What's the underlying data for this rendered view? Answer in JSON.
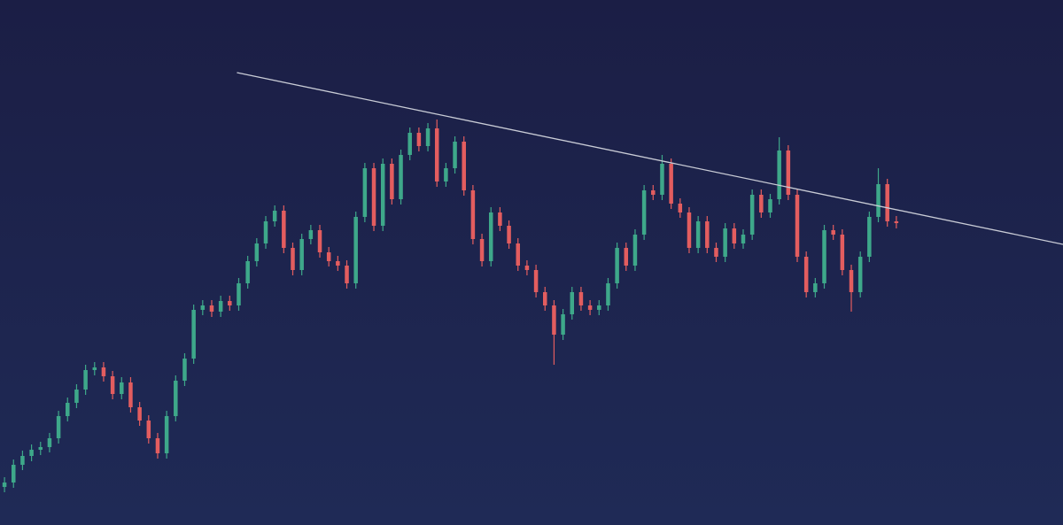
{
  "chart_data": {
    "type": "candlestick",
    "up_color": "#3ea88a",
    "down_color": "#e35d5f",
    "trendline_color": "#c9ccd6",
    "xlim": [
      -0.5,
      117.5
    ],
    "ylim": [
      0,
      593
    ],
    "open": [
      43,
      48,
      68,
      78,
      85,
      88,
      98,
      123,
      138,
      153,
      175,
      178,
      168,
      148,
      161,
      133,
      118,
      98,
      81,
      123,
      163,
      188,
      243,
      248,
      241,
      253,
      248,
      273,
      298,
      318,
      343,
      355,
      313,
      288,
      323,
      333,
      308,
      298,
      293,
      273,
      348,
      403,
      338,
      408,
      368,
      418,
      443,
      428,
      448,
      388,
      403,
      433,
      378,
      323,
      298,
      353,
      338,
      318,
      293,
      288,
      263,
      248,
      215,
      238,
      263,
      248,
      243,
      248,
      273,
      313,
      293,
      328,
      378,
      373,
      408,
      363,
      353,
      313,
      343,
      313,
      303,
      335,
      318,
      328,
      373,
      353,
      368,
      423,
      373,
      303,
      263,
      273,
      333,
      328,
      288,
      263,
      303,
      348,
      385,
      343
    ],
    "high": [
      54,
      74,
      84,
      91,
      94,
      104,
      129,
      144,
      159,
      181,
      184,
      184,
      174,
      167,
      167,
      139,
      124,
      104,
      129,
      169,
      194,
      249,
      254,
      254,
      259,
      259,
      279,
      304,
      324,
      349,
      361,
      361,
      319,
      329,
      339,
      339,
      314,
      304,
      299,
      354,
      409,
      409,
      414,
      414,
      424,
      449,
      449,
      454,
      458,
      409,
      439,
      439,
      384,
      329,
      359,
      359,
      344,
      324,
      299,
      294,
      269,
      254,
      244,
      269,
      269,
      254,
      254,
      279,
      319,
      319,
      334,
      384,
      384,
      418,
      414,
      369,
      359,
      349,
      349,
      319,
      341,
      341,
      334,
      379,
      379,
      374,
      438,
      429,
      379,
      309,
      279,
      339,
      339,
      334,
      294,
      309,
      354,
      403,
      391,
      349
    ],
    "low": [
      37,
      42,
      62,
      72,
      79,
      82,
      92,
      117,
      132,
      147,
      169,
      162,
      142,
      142,
      127,
      112,
      92,
      75,
      75,
      117,
      157,
      182,
      237,
      235,
      235,
      242,
      242,
      267,
      292,
      312,
      337,
      307,
      282,
      282,
      317,
      302,
      292,
      287,
      267,
      267,
      342,
      332,
      332,
      362,
      362,
      412,
      422,
      422,
      382,
      382,
      397,
      372,
      317,
      292,
      292,
      332,
      312,
      287,
      282,
      257,
      242,
      181,
      209,
      232,
      242,
      237,
      237,
      242,
      267,
      287,
      287,
      322,
      367,
      367,
      357,
      347,
      307,
      307,
      307,
      297,
      297,
      312,
      312,
      322,
      347,
      347,
      362,
      367,
      297,
      257,
      257,
      267,
      322,
      282,
      241,
      257,
      297,
      342,
      337,
      335
    ],
    "close": [
      48,
      68,
      78,
      85,
      88,
      98,
      123,
      138,
      153,
      175,
      178,
      168,
      148,
      161,
      133,
      118,
      98,
      81,
      123,
      163,
      188,
      243,
      248,
      241,
      253,
      248,
      273,
      298,
      318,
      343,
      355,
      313,
      288,
      323,
      333,
      308,
      298,
      293,
      273,
      348,
      403,
      338,
      408,
      368,
      418,
      443,
      428,
      448,
      388,
      403,
      433,
      378,
      323,
      298,
      353,
      338,
      318,
      293,
      288,
      263,
      248,
      215,
      238,
      263,
      248,
      243,
      248,
      273,
      313,
      293,
      328,
      378,
      373,
      408,
      363,
      353,
      313,
      343,
      313,
      303,
      335,
      318,
      328,
      373,
      353,
      368,
      423,
      373,
      303,
      263,
      273,
      333,
      328,
      288,
      263,
      303,
      348,
      385,
      343,
      341
    ],
    "trendline": {
      "x": [
        25.8,
        117.5
      ],
      "y": [
        511,
        317
      ]
    }
  }
}
